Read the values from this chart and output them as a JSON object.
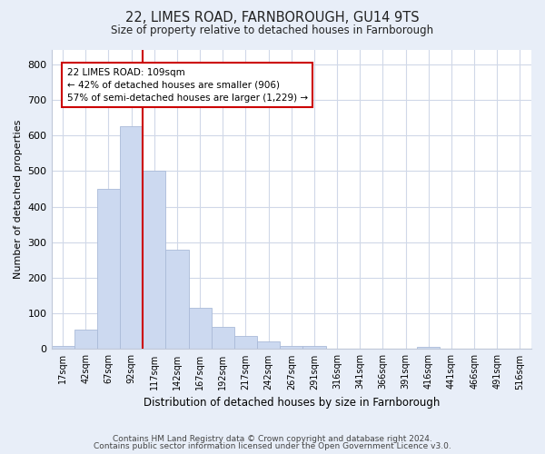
{
  "title": "22, LIMES ROAD, FARNBOROUGH, GU14 9TS",
  "subtitle": "Size of property relative to detached houses in Farnborough",
  "xlabel": "Distribution of detached houses by size in Farnborough",
  "ylabel": "Number of detached properties",
  "bin_labels": [
    "17sqm",
    "42sqm",
    "67sqm",
    "92sqm",
    "117sqm",
    "142sqm",
    "167sqm",
    "192sqm",
    "217sqm",
    "242sqm",
    "267sqm",
    "291sqm",
    "316sqm",
    "341sqm",
    "366sqm",
    "391sqm",
    "416sqm",
    "441sqm",
    "466sqm",
    "491sqm",
    "516sqm"
  ],
  "bar_values": [
    10,
    55,
    450,
    625,
    500,
    278,
    116,
    62,
    37,
    22,
    8,
    8,
    0,
    0,
    0,
    0,
    5,
    0,
    0,
    0,
    0
  ],
  "bar_color": "#ccd9f0",
  "bar_edgecolor": "#aabbd8",
  "vline_color": "#cc0000",
  "vline_x_index": 3,
  "annotation_line1": "22 LIMES ROAD: 109sqm",
  "annotation_line2": "← 42% of detached houses are smaller (906)",
  "annotation_line3": "57% of semi-detached houses are larger (1,229) →",
  "annotation_box_facecolor": "#ffffff",
  "annotation_box_edgecolor": "#cc0000",
  "ylim": [
    0,
    840
  ],
  "yticks": [
    0,
    100,
    200,
    300,
    400,
    500,
    600,
    700,
    800
  ],
  "footer1": "Contains HM Land Registry data © Crown copyright and database right 2024.",
  "footer2": "Contains public sector information licensed under the Open Government Licence v3.0.",
  "fig_facecolor": "#e8eef8",
  "plot_facecolor": "#ffffff",
  "grid_color": "#d0d8e8",
  "spine_color": "#c0c8d8"
}
